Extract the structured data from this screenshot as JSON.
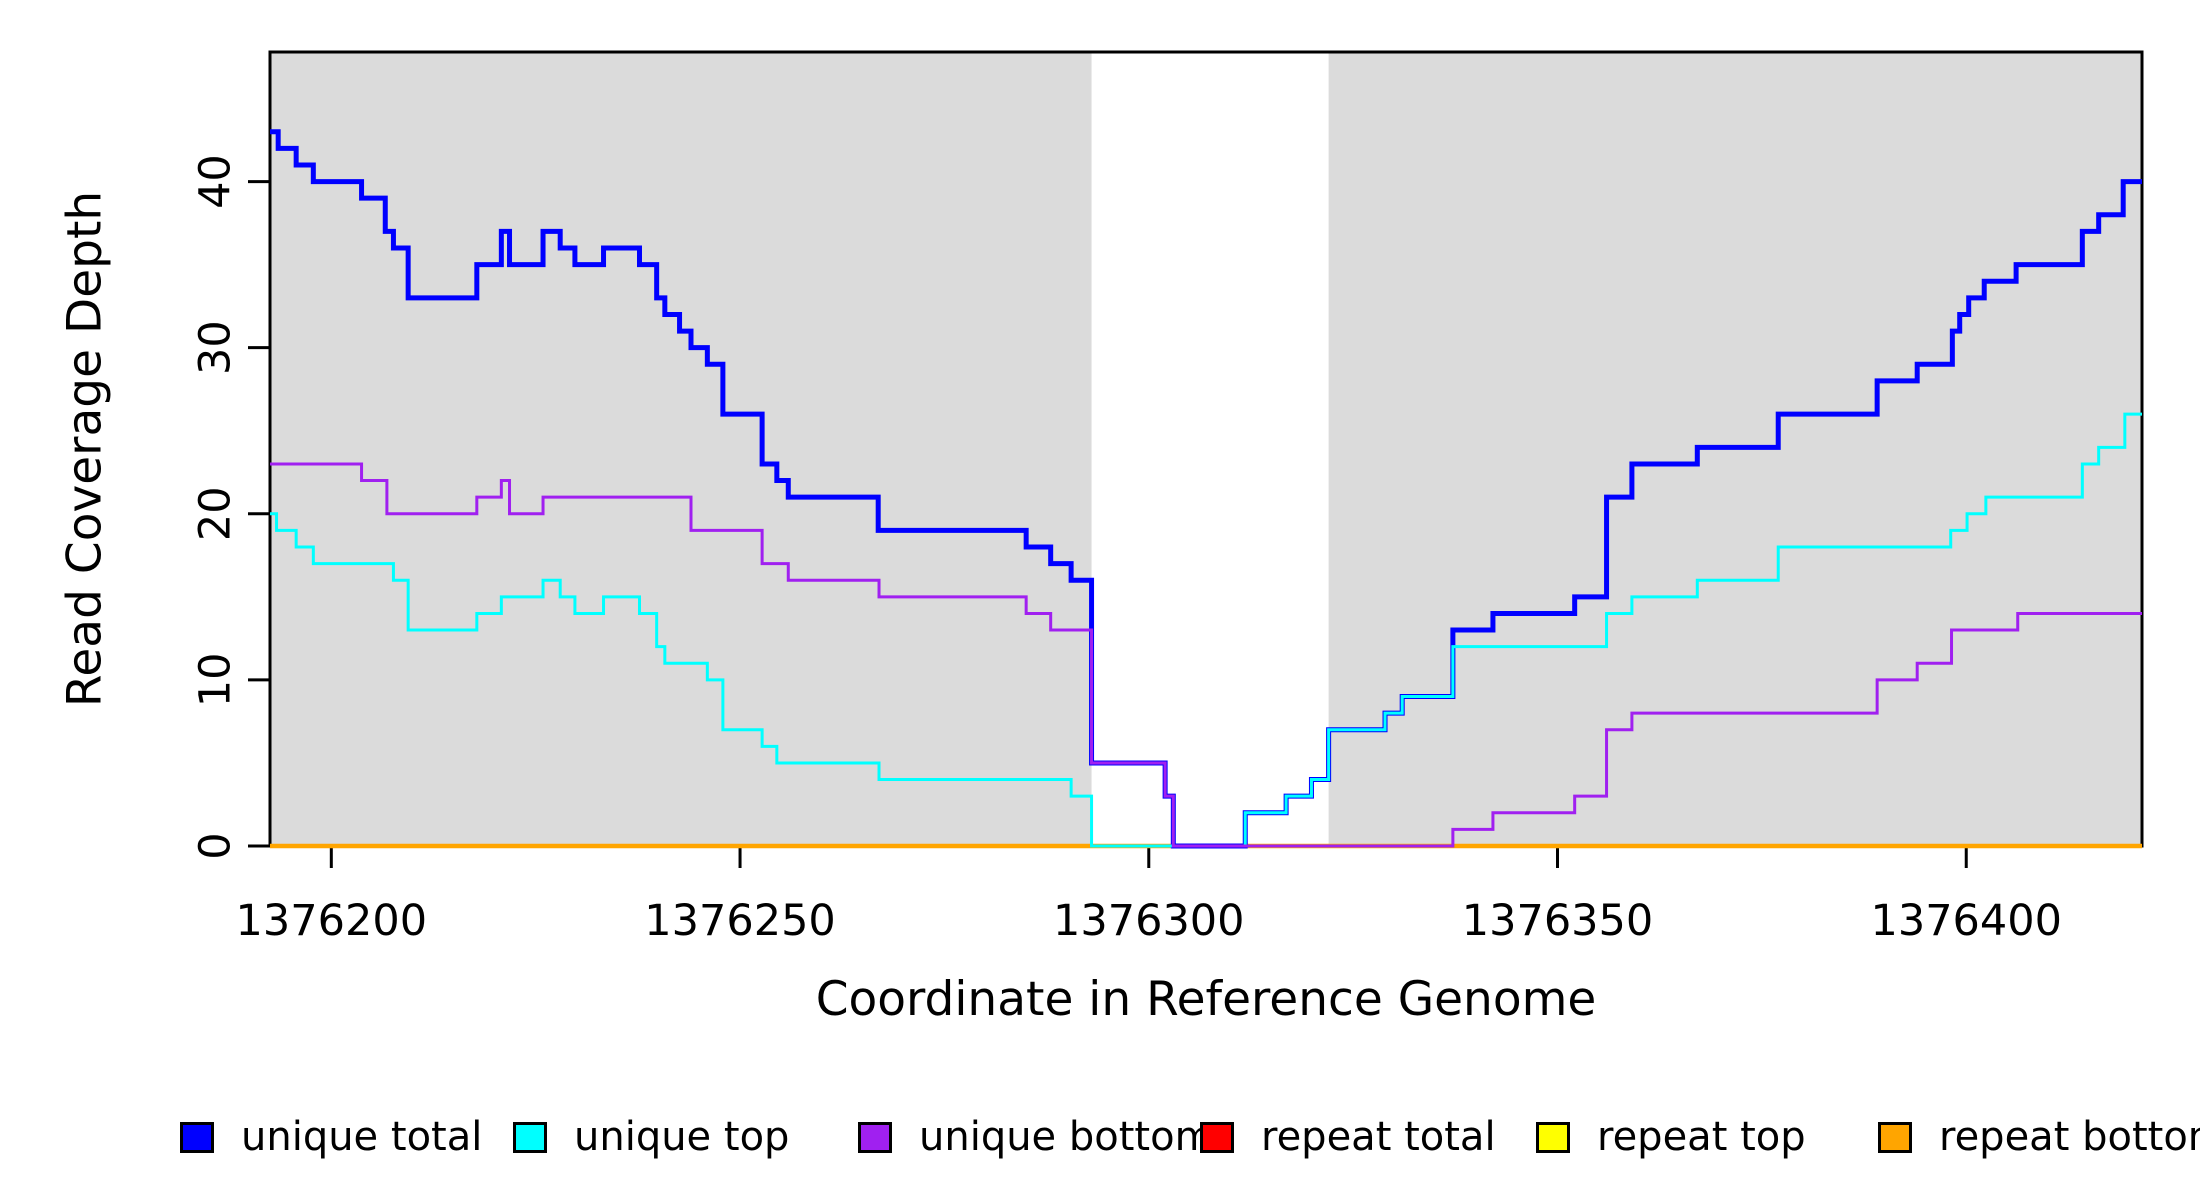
{
  "figure": {
    "background": "#ffffff",
    "xlabel": "Coordinate in Reference Genome",
    "ylabel": "Read Coverage Depth"
  },
  "chart_data": {
    "type": "line",
    "subtype": "step",
    "title": "",
    "xlabel": "Coordinate in Reference Genome",
    "ylabel": "Read Coverage Depth",
    "xlim": [
      1376192.5,
      1376421.5
    ],
    "ylim": [
      0,
      47.8
    ],
    "x_ticks": [
      1376200,
      1376250,
      1376300,
      1376350,
      1376400
    ],
    "y_ticks": [
      0,
      10,
      20,
      30,
      40
    ],
    "grid": false,
    "legend_position": "bottom",
    "axis_color": "#000000",
    "background_shading": {
      "color": "#dbdbdb",
      "regions": [
        [
          1376192.5,
          1376293
        ],
        [
          1376322,
          1376421.5
        ]
      ]
    },
    "legend": {
      "items": [
        {
          "label": "unique total",
          "color": "#0000FF"
        },
        {
          "label": "unique top",
          "color": "#00FFFF"
        },
        {
          "label": "unique bottom",
          "color": "#A020F0"
        },
        {
          "label": "repeat total",
          "color": "#FF0000"
        },
        {
          "label": "repeat top",
          "color": "#FFFF00"
        },
        {
          "label": "repeat bottom",
          "color": "#FFA500"
        }
      ]
    },
    "series": [
      {
        "name": "repeat total",
        "color": "#FF0000",
        "width": 3,
        "steps": [
          [
            1376192.5,
            0
          ]
        ]
      },
      {
        "name": "repeat top",
        "color": "#FFFF00",
        "width": 3,
        "steps": [
          [
            1376192.5,
            0
          ]
        ]
      },
      {
        "name": "repeat bottom",
        "color": "#FFA500",
        "width": 4.5,
        "steps": [
          [
            1376192.5,
            0
          ]
        ]
      },
      {
        "name": "unique total",
        "color": "#0000FF",
        "width": 5,
        "steps": [
          [
            1376192.5,
            43
          ],
          [
            1376193.5,
            42
          ],
          [
            1376195.7,
            41
          ],
          [
            1376197.8,
            40
          ],
          [
            1376203.7,
            39
          ],
          [
            1376206.6,
            37
          ],
          [
            1376207.6,
            36
          ],
          [
            1376209.4,
            33
          ],
          [
            1376217.8,
            35
          ],
          [
            1376220.8,
            37
          ],
          [
            1376221.8,
            35
          ],
          [
            1376225.9,
            37
          ],
          [
            1376228,
            36
          ],
          [
            1376229.8,
            35
          ],
          [
            1376233.3,
            36
          ],
          [
            1376237.7,
            35
          ],
          [
            1376239.8,
            33
          ],
          [
            1376240.8,
            32
          ],
          [
            1376242.6,
            31
          ],
          [
            1376244,
            30
          ],
          [
            1376246,
            29
          ],
          [
            1376247.9,
            26
          ],
          [
            1376252.7,
            23
          ],
          [
            1376254.5,
            22
          ],
          [
            1376255.9,
            21
          ],
          [
            1376266.9,
            19
          ],
          [
            1376285,
            18
          ],
          [
            1376288,
            17
          ],
          [
            1376290.5,
            16
          ],
          [
            1376293,
            5
          ],
          [
            1376302,
            3
          ],
          [
            1376303,
            0
          ],
          [
            1376311.8,
            2
          ],
          [
            1376316.8,
            3
          ],
          [
            1376319.9,
            4
          ],
          [
            1376322,
            7
          ],
          [
            1376328.9,
            8
          ],
          [
            1376331,
            9
          ],
          [
            1376337.2,
            13
          ],
          [
            1376342.1,
            14
          ],
          [
            1376352.1,
            15
          ],
          [
            1376356,
            21
          ],
          [
            1376359.1,
            23
          ],
          [
            1376367.1,
            24
          ],
          [
            1376377,
            26
          ],
          [
            1376389.1,
            28
          ],
          [
            1376394,
            29
          ],
          [
            1376398.3,
            31
          ],
          [
            1376399.2,
            32
          ],
          [
            1376400.3,
            33
          ],
          [
            1376402.2,
            34
          ],
          [
            1376406.1,
            35
          ],
          [
            1376414.2,
            37
          ],
          [
            1376416.2,
            38
          ],
          [
            1376419.2,
            40
          ]
        ]
      },
      {
        "name": "unique top",
        "color": "#00FFFF",
        "width": 3,
        "steps": [
          [
            1376192.5,
            20
          ],
          [
            1376193.3,
            19
          ],
          [
            1376195.7,
            18
          ],
          [
            1376197.8,
            17
          ],
          [
            1376207.6,
            16
          ],
          [
            1376209.4,
            13
          ],
          [
            1376217.8,
            14
          ],
          [
            1376220.8,
            15
          ],
          [
            1376225.9,
            16
          ],
          [
            1376228,
            15
          ],
          [
            1376229.8,
            14
          ],
          [
            1376233.3,
            15
          ],
          [
            1376237.7,
            14
          ],
          [
            1376239.8,
            12
          ],
          [
            1376240.8,
            11
          ],
          [
            1376246,
            10
          ],
          [
            1376247.9,
            7
          ],
          [
            1376252.7,
            6
          ],
          [
            1376254.5,
            5
          ],
          [
            1376267,
            4
          ],
          [
            1376290.5,
            3
          ],
          [
            1376293,
            0
          ],
          [
            1376311.8,
            2
          ],
          [
            1376316.8,
            3
          ],
          [
            1376319.9,
            4
          ],
          [
            1376322,
            7
          ],
          [
            1376328.9,
            8
          ],
          [
            1376331,
            9
          ],
          [
            1376337.2,
            12
          ],
          [
            1376356,
            14
          ],
          [
            1376359.1,
            15
          ],
          [
            1376367.1,
            16
          ],
          [
            1376377,
            18
          ],
          [
            1376398.1,
            19
          ],
          [
            1376400.1,
            20
          ],
          [
            1376402.4,
            21
          ],
          [
            1376414.2,
            23
          ],
          [
            1376416.2,
            24
          ],
          [
            1376419.4,
            26
          ]
        ]
      },
      {
        "name": "unique bottom",
        "color": "#A020F0",
        "width": 3,
        "steps": [
          [
            1376192.5,
            23
          ],
          [
            1376203.7,
            22
          ],
          [
            1376206.8,
            20
          ],
          [
            1376217.8,
            21
          ],
          [
            1376220.8,
            22
          ],
          [
            1376221.8,
            20
          ],
          [
            1376225.9,
            21
          ],
          [
            1376244,
            19
          ],
          [
            1376252.7,
            17
          ],
          [
            1376255.9,
            16
          ],
          [
            1376267,
            15
          ],
          [
            1376285,
            14
          ],
          [
            1376288,
            13
          ],
          [
            1376293,
            5
          ],
          [
            1376302,
            3
          ],
          [
            1376303,
            0
          ],
          [
            1376337.2,
            1
          ],
          [
            1376342.1,
            2
          ],
          [
            1376352.1,
            3
          ],
          [
            1376356,
            7
          ],
          [
            1376359.1,
            8
          ],
          [
            1376389.1,
            10
          ],
          [
            1376394,
            11
          ],
          [
            1376398.2,
            13
          ],
          [
            1376406.3,
            14
          ]
        ]
      }
    ]
  }
}
